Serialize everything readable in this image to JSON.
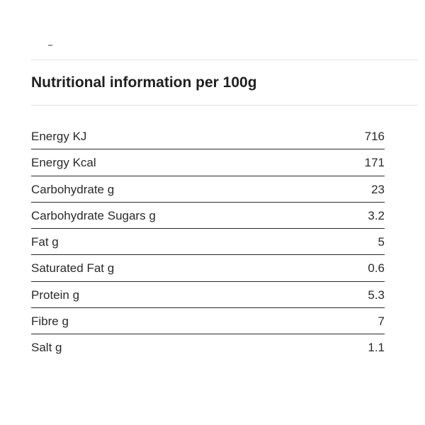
{
  "heading": "Nutritional information per 100g",
  "rows": [
    {
      "label": "Energy KJ",
      "value": "716"
    },
    {
      "label": "Energy Kcal",
      "value": "171"
    },
    {
      "label": "Carbohydrate g",
      "value": "23"
    },
    {
      "label": "Carbohydrate Sugars g",
      "value": "3.2"
    },
    {
      "label": "Fat g",
      "value": "5"
    },
    {
      "label": "Saturated Fat g",
      "value": "0.6"
    },
    {
      "label": "Protein g",
      "value": "5.3"
    },
    {
      "label": "Fibre g",
      "value": "7"
    },
    {
      "label": "Salt g",
      "value": "1.1"
    }
  ]
}
